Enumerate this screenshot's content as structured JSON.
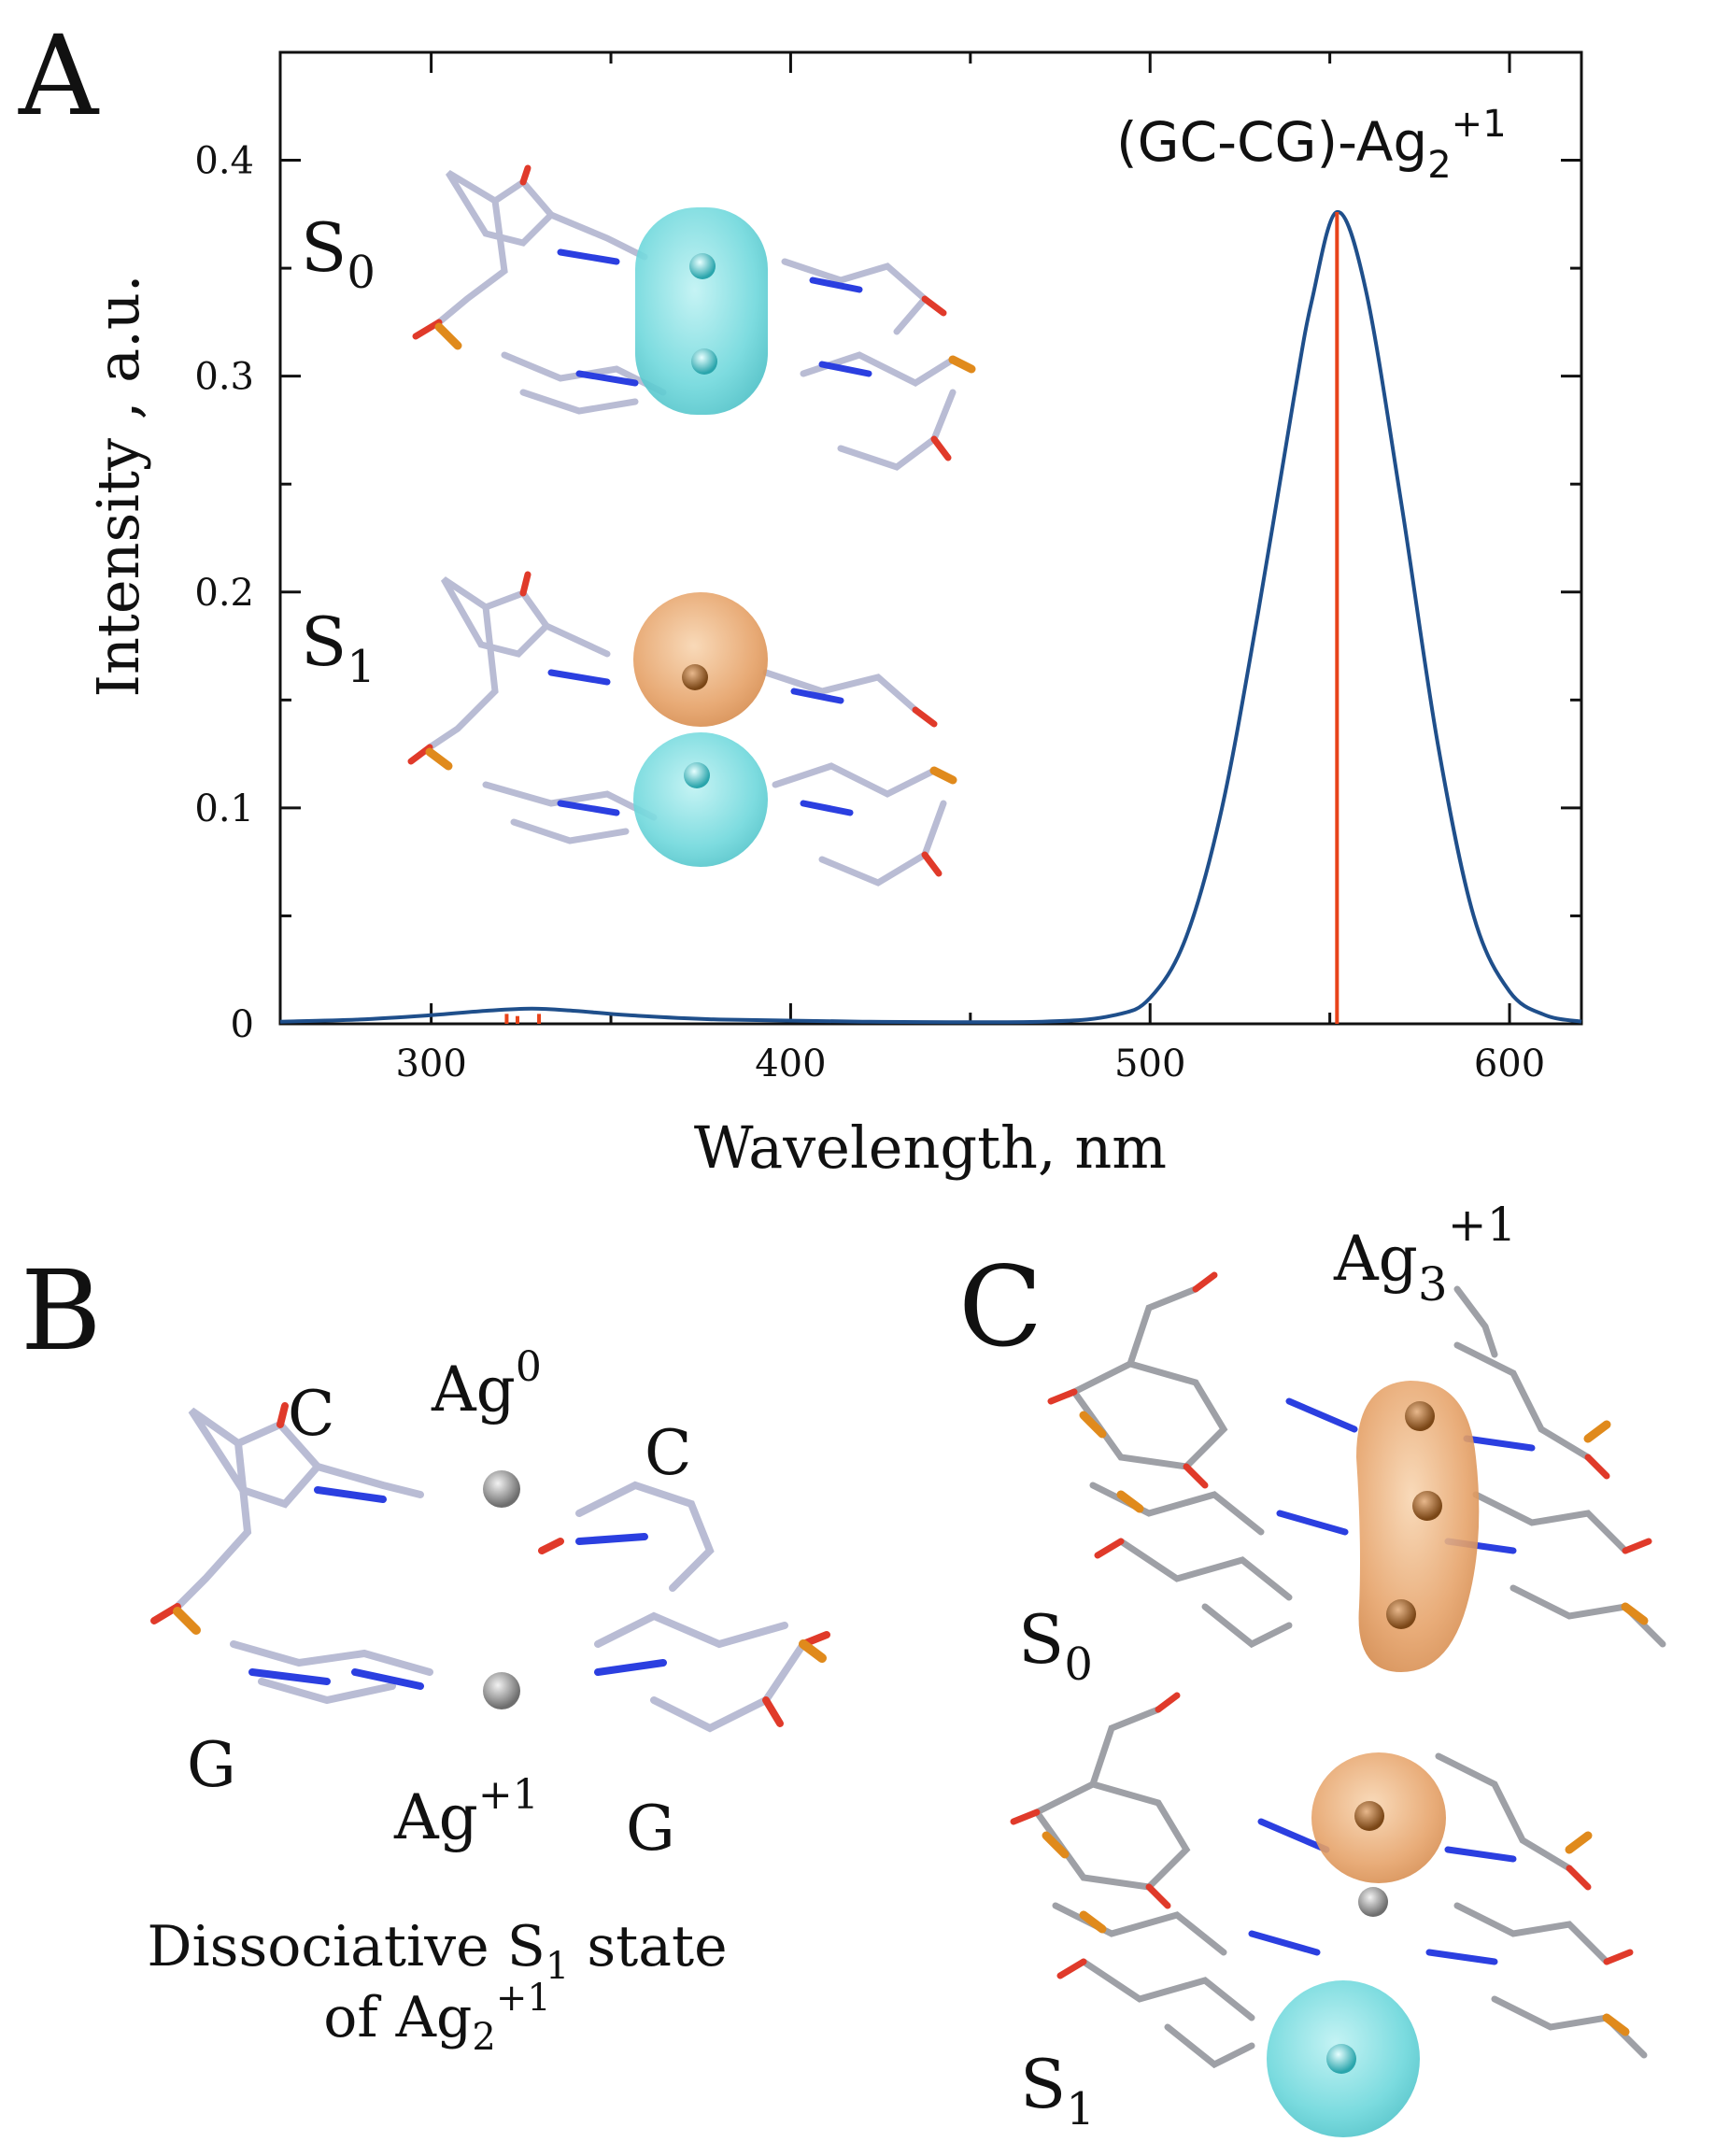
{
  "panels": {
    "a": {
      "letter": "A",
      "s0_label": "S",
      "s0_sub": "0",
      "s1_label": "S",
      "s1_sub": "1"
    },
    "b": {
      "letter": "B",
      "label_c_left": "C",
      "label_c_right": "C",
      "label_g_left": "G",
      "label_g_right": "G",
      "ag_top": "Ag",
      "ag_top_sup": "0",
      "ag_bottom": "Ag",
      "ag_bottom_sup": "+1",
      "caption_line1_a": "Dissociative S",
      "caption_line1_sub": "1",
      "caption_line1_b": " state",
      "caption_line2_a": "of Ag",
      "caption_line2_sub": "2",
      "caption_line2_sup": "+1"
    },
    "c": {
      "letter": "C",
      "cluster": "Ag",
      "cluster_sub": "3",
      "cluster_sup": "+1",
      "s0_label": "S",
      "s0_sub": "0",
      "s1_label": "S",
      "s1_sub": "1"
    }
  },
  "chart_data": {
    "type": "line",
    "title_main": "(GC-CG)-Ag",
    "title_sub": "2",
    "title_sup": "+1",
    "xlabel": "Wavelength, nm",
    "ylabel": "Intensity , a.u.",
    "xlim": [
      258,
      620
    ],
    "ylim": [
      0,
      0.45
    ],
    "xticks": [
      300,
      400,
      500,
      600
    ],
    "yticks": [
      0,
      0.1,
      0.2,
      0.3,
      0.4
    ],
    "ytick_labels": [
      "0",
      "0.1",
      "0.2",
      "0.3",
      "0.4"
    ],
    "grid": false,
    "series": [
      {
        "color": "#1f4f8b",
        "x": [
          258,
          280,
          300,
          315,
          328,
          340,
          355,
          380,
          420,
          470,
          490,
          500,
          510,
          520,
          530,
          540,
          545,
          552,
          560,
          570,
          580,
          590,
          600,
          610,
          620
        ],
        "values": [
          0.001,
          0.002,
          0.004,
          0.006,
          0.007,
          0.006,
          0.004,
          0.002,
          0.001,
          0.001,
          0.004,
          0.012,
          0.04,
          0.1,
          0.19,
          0.29,
          0.335,
          0.376,
          0.34,
          0.24,
          0.13,
          0.05,
          0.015,
          0.004,
          0.001
        ]
      }
    ],
    "sticks": {
      "color": "#e8431a",
      "x": [
        321,
        324,
        330,
        552
      ],
      "values": [
        0.002,
        0.001,
        0.002,
        0.376
      ]
    },
    "colors": {
      "curve": "#1f4f8b",
      "stick": "#e8431a",
      "cyan_orbital": "#6fd8dc",
      "orange_orbital": "#e6a36a",
      "carbon": "#b9bcd4",
      "oxygen": "#e03a2a",
      "nitrogen": "#2b3fe0",
      "phosphorus": "#e08a1c",
      "silver_atom": "#8c8c8c"
    }
  }
}
